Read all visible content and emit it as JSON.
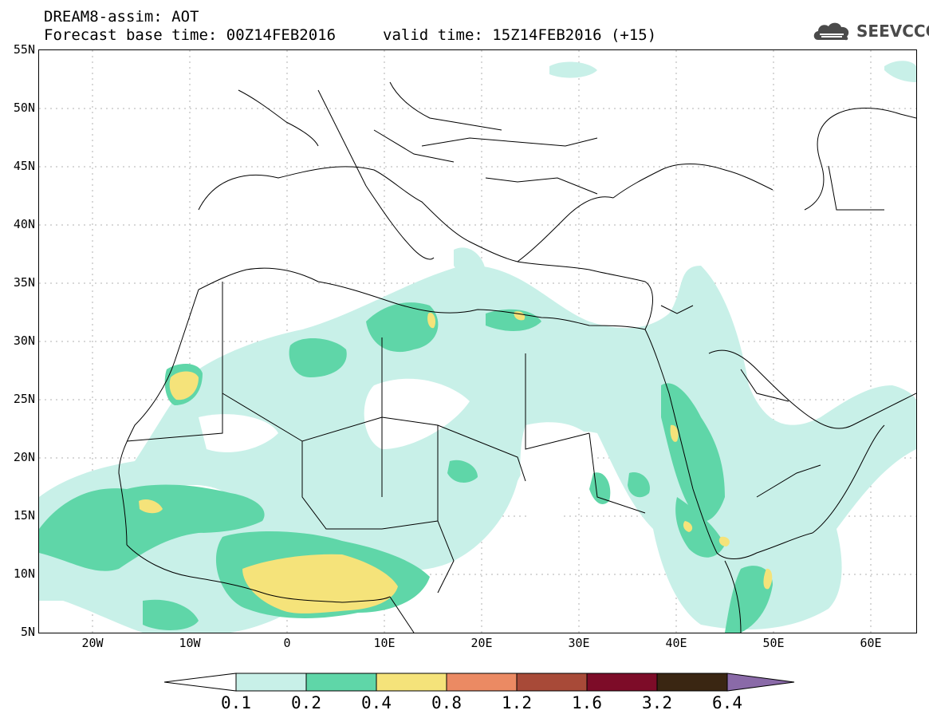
{
  "header": {
    "title": "DREAM8-assim: AOT",
    "base_time": "Forecast base time: 00Z14FEB2016",
    "valid_time": "valid time: 15Z14FEB2016 (+15)"
  },
  "logo": {
    "text": "SEEVCCC",
    "icon": "cloud-logo-icon"
  },
  "map": {
    "lat_labels": [
      "55N",
      "50N",
      "45N",
      "40N",
      "35N",
      "30N",
      "25N",
      "20N",
      "15N",
      "10N",
      "5N"
    ],
    "lon_labels": [
      "20W",
      "10W",
      "0",
      "10E",
      "20E",
      "30E",
      "40E",
      "50E",
      "60E"
    ],
    "extent": {
      "lon": [
        -25,
        65
      ],
      "lat": [
        5,
        55
      ]
    }
  },
  "legend": {
    "levels": [
      "0.1",
      "0.2",
      "0.4",
      "0.8",
      "1.2",
      "1.6",
      "3.2",
      "6.4"
    ],
    "colors": [
      "#ffffff",
      "#c8f0e8",
      "#5fd6a8",
      "#f5e37a",
      "#eb8a63",
      "#a84a38",
      "#7d0c28",
      "#3a2612",
      "#8a6aa8"
    ]
  },
  "colors": {
    "aot_0_1": "#c8f0e8",
    "aot_0_2": "#5fd6a8",
    "aot_0_4": "#f5e37a",
    "border": "#000000",
    "grid": "#b0b0b0"
  }
}
